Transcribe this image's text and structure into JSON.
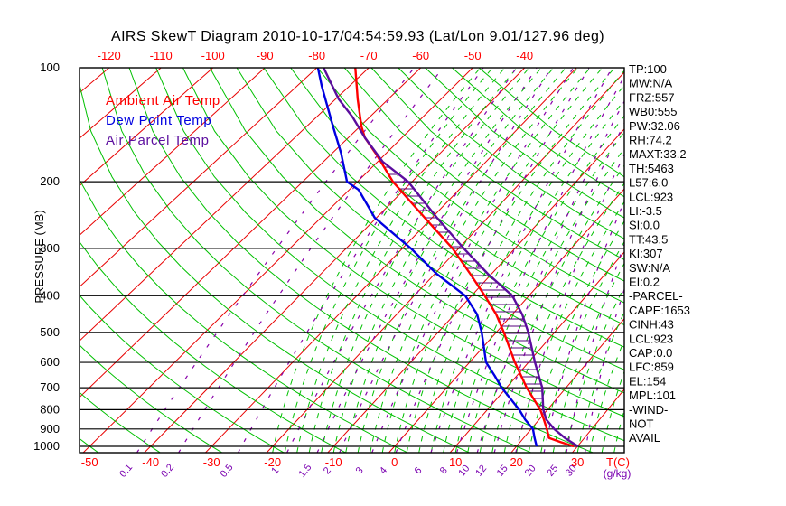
{
  "title": "AIRS SkewT Diagram 2010-10-17/04:54:59.93 (Lat/Lon 9.01/127.96 deg)",
  "legend": {
    "items": [
      {
        "label": "Ambient Air Temp",
        "color": "#ff0000"
      },
      {
        "label": "Dew Point Temp",
        "color": "#0000e0"
      },
      {
        "label": "Air Parcel Temp",
        "color": "#5b0d9e"
      }
    ]
  },
  "axes": {
    "pressure_axis_label": "PRESSURE (MB)",
    "pressure_ticks": [
      100,
      200,
      300,
      400,
      500,
      600,
      700,
      800,
      900,
      1000
    ],
    "top_temp_labels": [
      -120,
      -110,
      -100,
      -90,
      -80,
      -70,
      -60,
      -50,
      -40
    ],
    "bottom_temp_labels": [
      -50,
      -40,
      -30,
      -20,
      -10,
      0,
      10,
      20,
      30
    ],
    "temp_unit_label": "T(C)",
    "mixing_unit_label": "(g/kg)",
    "mixing_ratio_labels": [
      0.1,
      0.2,
      0.5,
      1,
      1.5,
      2,
      3,
      4,
      6,
      8,
      10,
      12,
      15,
      20,
      25,
      30
    ]
  },
  "stats_panel": {
    "lines": [
      "TP:100",
      "MW:N/A",
      "FRZ:557",
      "WB0:555",
      "PW:32.06",
      "RH:74.2",
      "MAXT:33.2",
      "TH:5463",
      "L57:6.0",
      "LCL:923",
      "LI:-3.5",
      "SI:0.0",
      "TT:43.5",
      "KI:307",
      "SW:N/A",
      "EI:0.2",
      "-PARCEL-",
      "CAPE:1653",
      "CINH:43",
      "LCL:923",
      "CAP:0.0",
      "LFC:859",
      "EL:154",
      "MPL:101",
      "-WIND-",
      "NOT",
      "AVAIL"
    ]
  },
  "colors": {
    "isotherm": "#e80000",
    "dry_adiabat": "#00c000",
    "moist_adiabat": "#00c000",
    "mixing_ratio": "#8800aa",
    "ambient_temp": "#ff0000",
    "dew_point": "#0000e0",
    "parcel": "#5b0d9e",
    "hatch": "#55007d",
    "frame": "#000000",
    "axis_label_red": "#ff0000",
    "axis_label_purple": "#7a00b0",
    "title_black": "#000000"
  },
  "chart_data": {
    "type": "skewt",
    "pressure_range_mb": [
      100,
      1000
    ],
    "isotherms_c": [
      -120,
      -110,
      -100,
      -90,
      -80,
      -70,
      -60,
      -50,
      -40,
      -30,
      -20,
      -10,
      0,
      10,
      20,
      30,
      40
    ],
    "dry_adiabats_theta_c": [
      -50,
      -40,
      -30,
      -20,
      -10,
      0,
      10,
      20,
      30,
      40,
      50,
      60,
      70,
      80,
      90,
      100,
      110,
      120,
      130,
      140,
      150,
      160
    ],
    "moist_adiabat_surface_temps_c": [
      -20,
      -18,
      -16,
      -14,
      -12,
      -10,
      -8,
      -6,
      -4,
      -2,
      0,
      2,
      4,
      6,
      8,
      10,
      12,
      14,
      16,
      18,
      20,
      22,
      24,
      26,
      28,
      30,
      32,
      34,
      36
    ],
    "mixing_ratio_lines_g_kg": [
      0.1,
      0.2,
      0.5,
      1,
      1.5,
      2,
      3,
      4,
      6,
      8,
      10,
      12,
      15,
      20,
      25,
      30
    ],
    "series": [
      {
        "name": "Ambient Air Temp",
        "key": "temp",
        "points_p_t": [
          [
            1000,
            29.4
          ],
          [
            973,
            26.5
          ],
          [
            950,
            24.2
          ],
          [
            900,
            22.6
          ],
          [
            850,
            20.8
          ],
          [
            800,
            18.8
          ],
          [
            700,
            13.4
          ],
          [
            600,
            7.7
          ],
          [
            500,
            1.3
          ],
          [
            448,
            -2.8
          ],
          [
            400,
            -7.7
          ],
          [
            350,
            -13.8
          ],
          [
            300,
            -21.1
          ],
          [
            249,
            -31.3
          ],
          [
            200,
            -43.5
          ],
          [
            170,
            -51.4
          ],
          [
            153,
            -56.9
          ],
          [
            143,
            -59.7
          ],
          [
            121,
            -65.8
          ],
          [
            100,
            -72.6
          ]
        ]
      },
      {
        "name": "Dew Point Temp",
        "key": "dew",
        "points_p_t": [
          [
            1000,
            23.3
          ],
          [
            950,
            21.8
          ],
          [
            900,
            20.3
          ],
          [
            850,
            17.7
          ],
          [
            800,
            15.3
          ],
          [
            700,
            9.2
          ],
          [
            650,
            6.2
          ],
          [
            600,
            2.8
          ],
          [
            500,
            -2.5
          ],
          [
            448,
            -6.1
          ],
          [
            400,
            -11.1
          ],
          [
            350,
            -19.7
          ],
          [
            300,
            -28.5
          ],
          [
            249,
            -40.3
          ],
          [
            210,
            -48.3
          ],
          [
            200,
            -51.9
          ],
          [
            168,
            -58.4
          ],
          [
            142,
            -65.3
          ],
          [
            112,
            -75.2
          ],
          [
            100,
            -79.8
          ]
        ]
      },
      {
        "name": "Air Parcel Temp",
        "key": "parcel",
        "points_p_t": [
          [
            1000,
            30.1
          ],
          [
            950,
            26.8
          ],
          [
            900,
            23.8
          ],
          [
            850,
            21.2
          ],
          [
            800,
            19.3
          ],
          [
            700,
            16.0
          ],
          [
            600,
            11.1
          ],
          [
            500,
            5.5
          ],
          [
            448,
            1.7
          ],
          [
            400,
            -2.9
          ],
          [
            350,
            -10.7
          ],
          [
            300,
            -19.1
          ],
          [
            249,
            -29.1
          ],
          [
            200,
            -40.7
          ],
          [
            177,
            -49.1
          ],
          [
            153,
            -56.9
          ],
          [
            135,
            -63.2
          ],
          [
            121,
            -69.4
          ],
          [
            100,
            -78.7
          ]
        ]
      }
    ],
    "indices": {
      "CAPE": 1653,
      "CINH": 43,
      "LCL_mb": 923,
      "LFC_mb": 859,
      "EL_mb": 154,
      "MPL_mb": 101,
      "FRZ_mb": 557
    }
  }
}
